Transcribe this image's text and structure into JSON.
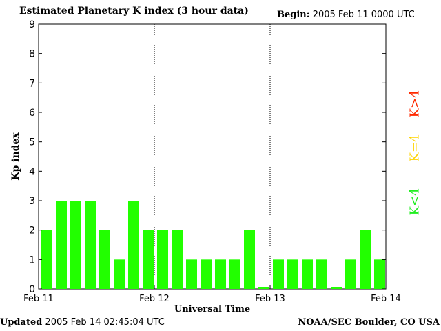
{
  "header": {
    "title": "Estimated Planetary K index (3 hour data)",
    "begin_label": "Begin:",
    "begin_value": "2005 Feb 11 0000 UTC"
  },
  "footer": {
    "updated_label": "Updated",
    "updated_value": "2005 Feb 14 02:45:04 UTC",
    "org": "NOAA/SEC Boulder, CO USA"
  },
  "legend": [
    {
      "label": "K>4",
      "color": "#ff2a00"
    },
    {
      "label": "K=4",
      "color": "#ffd400"
    },
    {
      "label": "K<4",
      "color": "#22ee22"
    }
  ],
  "chart_data": {
    "type": "bar",
    "title": "Estimated Planetary K index (3 hour data)",
    "xlabel": "Universal Time",
    "ylabel": "Kp index",
    "ylim": [
      0,
      9
    ],
    "yticks": [
      0,
      1,
      2,
      3,
      4,
      5,
      6,
      7,
      8,
      9
    ],
    "xtick_labels": [
      "Feb 11",
      "Feb 12",
      "Feb 13",
      "Feb 14"
    ],
    "bar_color": "#22ff00",
    "grid": false,
    "day_separators": true,
    "values": [
      2,
      3,
      3,
      3,
      2,
      1,
      3,
      2,
      2,
      2,
      1,
      1,
      1,
      1,
      2,
      0,
      1,
      1,
      1,
      1,
      0,
      1,
      2,
      1
    ]
  }
}
